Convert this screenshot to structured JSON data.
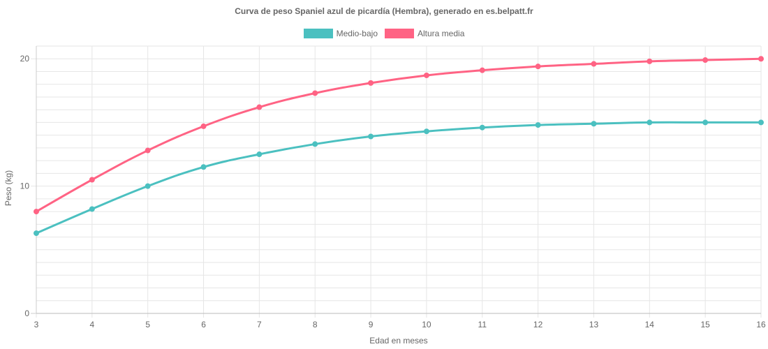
{
  "chart_data": {
    "type": "line",
    "title": "Curva de peso Spaniel azul de picardía (Hembra), generado en es.belpatt.fr",
    "xlabel": "Edad en meses",
    "ylabel": "Peso (kg)",
    "x": [
      3,
      4,
      5,
      6,
      7,
      8,
      9,
      10,
      11,
      12,
      13,
      14,
      15,
      16
    ],
    "x_tick_labels": [
      "3",
      "4",
      "5",
      "6",
      "7",
      "8",
      "9",
      "10",
      "11",
      "12",
      "13",
      "14",
      "15",
      "16"
    ],
    "y_tick_labels": [
      "0",
      "10",
      "20"
    ],
    "ylim": [
      0,
      21
    ],
    "grid": true,
    "legend_position": "top-center",
    "series": [
      {
        "name": "Medio-bajo",
        "color": "#4bc0c0",
        "values": [
          6.3,
          8.2,
          10.0,
          11.5,
          12.5,
          13.3,
          13.9,
          14.3,
          14.6,
          14.8,
          14.9,
          15.0,
          15.0,
          15.0
        ]
      },
      {
        "name": "Altura media",
        "color": "#ff6384",
        "values": [
          8.0,
          10.5,
          12.8,
          14.7,
          16.2,
          17.3,
          18.1,
          18.7,
          19.1,
          19.4,
          19.6,
          19.8,
          19.9,
          20.0
        ]
      }
    ]
  }
}
